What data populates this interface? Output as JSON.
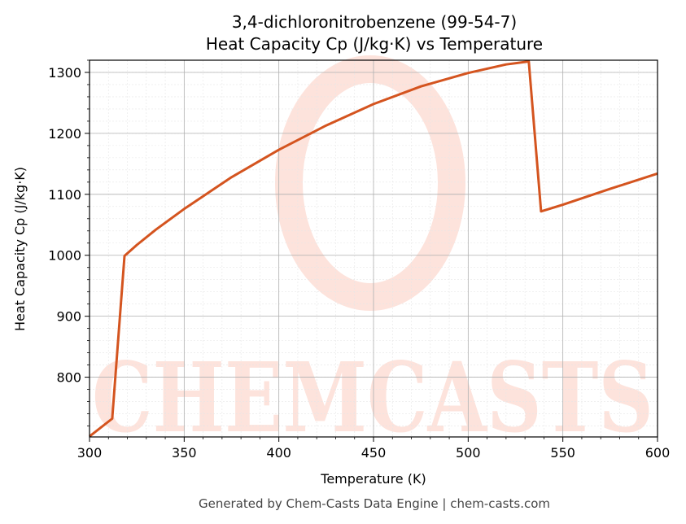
{
  "chart_data": {
    "type": "line",
    "title_line1": "3,4-dichloronitrobenzene (99-54-7)",
    "title_line2": "Heat Capacity Cp (J/kg·K) vs Temperature",
    "xlabel": "Temperature (K)",
    "ylabel": "Heat Capacity Cp (J/kg·K)",
    "xlim": [
      300,
      600
    ],
    "ylim": [
      702,
      1320
    ],
    "xticks": [
      300,
      350,
      400,
      450,
      500,
      550,
      600
    ],
    "yticks": [
      800,
      900,
      1000,
      1100,
      1200,
      1300
    ],
    "grid": true,
    "line_color": "#d4541f",
    "series": [
      {
        "x": [
          300,
          312,
          318.5,
          325,
          335,
          350,
          375,
          400,
          425,
          450,
          475,
          500,
          520,
          532,
          538.5,
          550,
          575,
          600
        ],
        "y": [
          703,
          732,
          999,
          1017,
          1042,
          1076,
          1128,
          1173,
          1213,
          1248,
          1277,
          1299,
          1313,
          1318,
          1072,
          1083,
          1109,
          1134
        ]
      }
    ]
  },
  "watermark": {
    "text": "CHEMCASTS",
    "color": "#fde3dc"
  },
  "footer": "Generated by Chem-Casts Data Engine | chem-casts.com"
}
